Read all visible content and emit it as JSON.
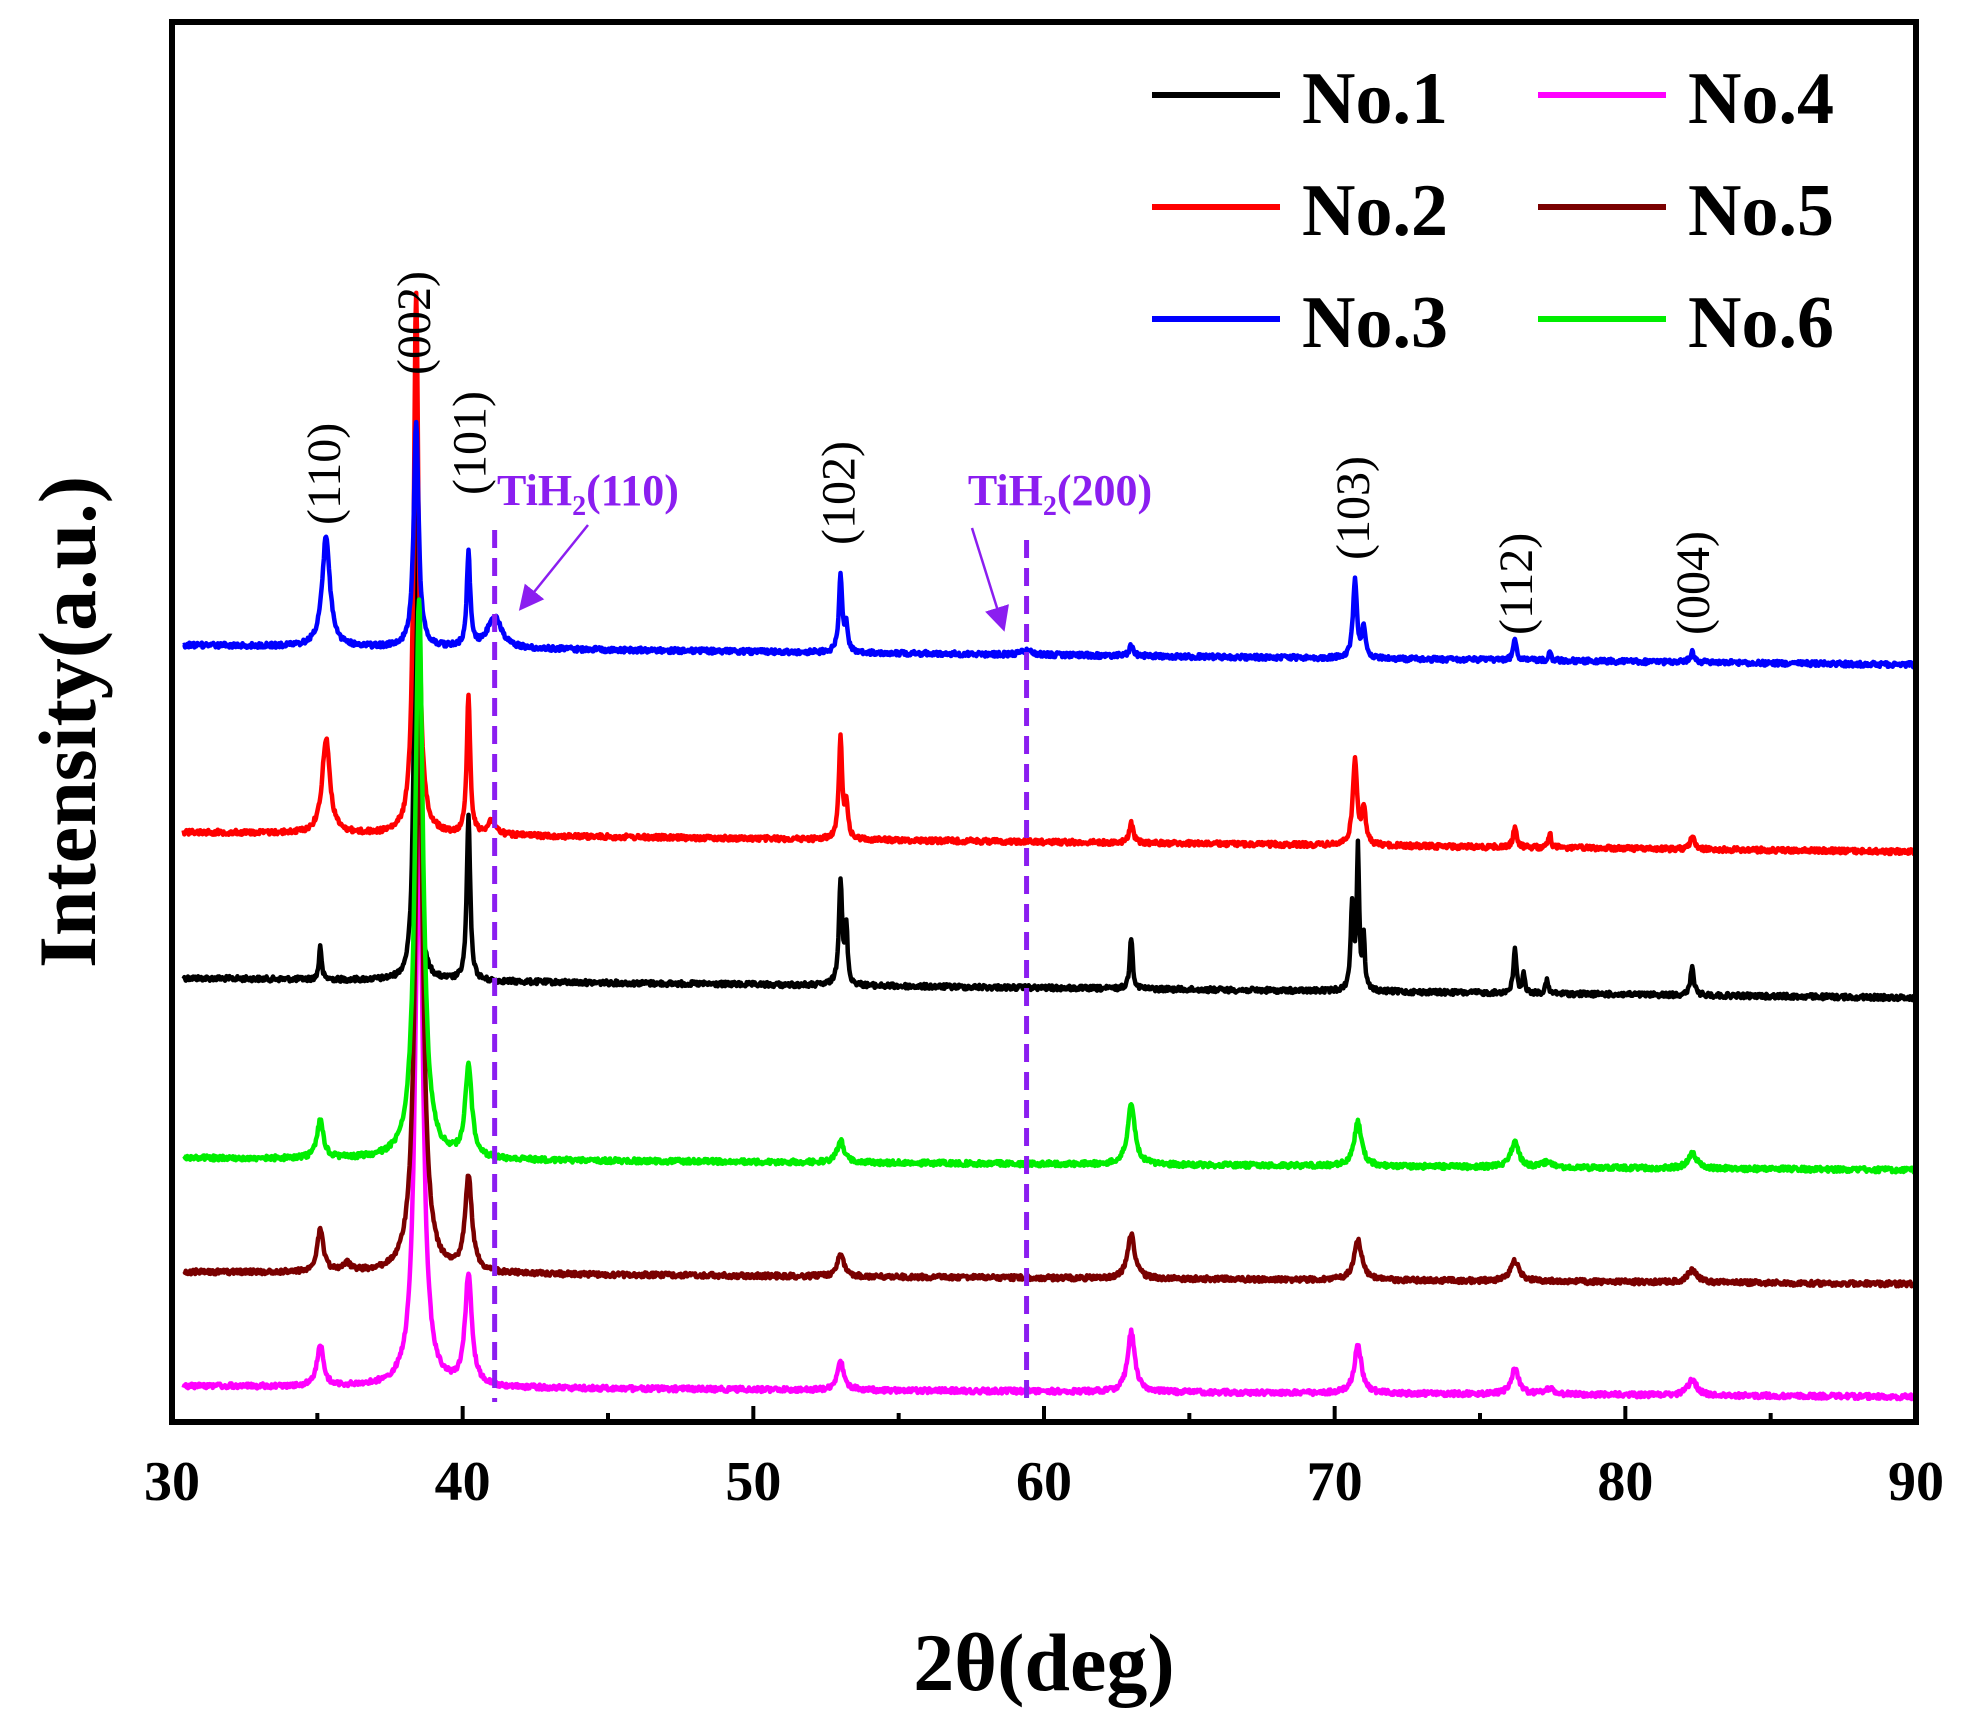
{
  "chart_data": {
    "type": "line",
    "xlabel": "2θ(deg)",
    "ylabel": "Intensity(a.u.)",
    "xlim": [
      30,
      90
    ],
    "xticks": [
      30,
      40,
      50,
      60,
      70,
      80,
      90
    ],
    "grid": false,
    "legend_position": "top-right",
    "series": [
      {
        "name": "No.1",
        "color": "#000000",
        "baseline": 978,
        "slope": 0.33,
        "peaks": [
          [
            35.1,
            0.05,
            35
          ],
          [
            38.4,
            0.08,
            520
          ],
          [
            40.2,
            0.07,
            165
          ],
          [
            53.0,
            0.07,
            105
          ],
          [
            53.2,
            0.05,
            55
          ],
          [
            63.0,
            0.06,
            52
          ],
          [
            70.6,
            0.06,
            85
          ],
          [
            70.8,
            0.05,
            140
          ],
          [
            71.0,
            0.05,
            50
          ],
          [
            76.2,
            0.06,
            45
          ],
          [
            76.5,
            0.05,
            20
          ],
          [
            77.3,
            0.05,
            14
          ],
          [
            82.3,
            0.07,
            28
          ]
        ]
      },
      {
        "name": "No.2",
        "color": "#ff0000",
        "baseline": 832,
        "slope": 0.33,
        "peaks": [
          [
            35.3,
            0.16,
            95
          ],
          [
            38.4,
            0.1,
            540
          ],
          [
            40.2,
            0.07,
            140
          ],
          [
            41.0,
            0.16,
            14
          ],
          [
            53.0,
            0.07,
            100
          ],
          [
            53.2,
            0.06,
            35
          ],
          [
            63.0,
            0.08,
            20
          ],
          [
            70.7,
            0.09,
            85
          ],
          [
            71.0,
            0.08,
            35
          ],
          [
            76.2,
            0.07,
            20
          ],
          [
            77.4,
            0.05,
            15
          ],
          [
            82.3,
            0.08,
            14
          ]
        ]
      },
      {
        "name": "No.3",
        "color": "#0000ff",
        "baseline": 645,
        "slope": 0.33,
        "peaks": [
          [
            35.3,
            0.16,
            110
          ],
          [
            38.4,
            0.1,
            225
          ],
          [
            40.2,
            0.07,
            95
          ],
          [
            41.1,
            0.28,
            32
          ],
          [
            53.0,
            0.07,
            75
          ],
          [
            53.2,
            0.06,
            25
          ],
          [
            59.4,
            0.2,
            4
          ],
          [
            63.0,
            0.08,
            10
          ],
          [
            70.7,
            0.08,
            80
          ],
          [
            71.0,
            0.07,
            30
          ],
          [
            76.2,
            0.07,
            20
          ],
          [
            77.4,
            0.05,
            8
          ],
          [
            82.3,
            0.08,
            10
          ]
        ]
      },
      {
        "name": "No.4",
        "color": "#ff00ff",
        "baseline": 1386,
        "slope": 0.18,
        "peaks": [
          [
            35.1,
            0.13,
            42
          ],
          [
            38.5,
            0.16,
            560
          ],
          [
            40.2,
            0.14,
            110
          ],
          [
            53.0,
            0.14,
            28
          ],
          [
            63.0,
            0.15,
            60
          ],
          [
            70.8,
            0.15,
            48
          ],
          [
            76.2,
            0.16,
            25
          ],
          [
            77.4,
            0.18,
            6
          ],
          [
            82.3,
            0.18,
            16
          ]
        ]
      },
      {
        "name": "No.5",
        "color": "#7a0000",
        "baseline": 1272,
        "slope": 0.2,
        "peaks": [
          [
            35.1,
            0.13,
            42
          ],
          [
            36.0,
            0.2,
            8
          ],
          [
            38.5,
            0.16,
            560
          ],
          [
            40.2,
            0.14,
            95
          ],
          [
            53.0,
            0.14,
            22
          ],
          [
            63.0,
            0.15,
            45
          ],
          [
            70.8,
            0.16,
            40
          ],
          [
            76.2,
            0.18,
            20
          ],
          [
            82.3,
            0.2,
            12
          ]
        ]
      },
      {
        "name": "No.6",
        "color": "#00ee00",
        "baseline": 1158,
        "slope": 0.2,
        "peaks": [
          [
            35.1,
            0.13,
            38
          ],
          [
            38.5,
            0.16,
            560
          ],
          [
            40.2,
            0.14,
            90
          ],
          [
            53.0,
            0.14,
            22
          ],
          [
            63.0,
            0.15,
            60
          ],
          [
            70.8,
            0.15,
            45
          ],
          [
            76.2,
            0.16,
            25
          ],
          [
            77.3,
            0.18,
            5
          ],
          [
            82.3,
            0.18,
            15
          ]
        ]
      }
    ],
    "peak_labels": [
      {
        "text": "(110)",
        "x": 35.3
      },
      {
        "text": "(002)",
        "x": 38.4
      },
      {
        "text": "(101)",
        "x": 40.3
      },
      {
        "text": "(102)",
        "x": 53.0
      },
      {
        "text": "(103)",
        "x": 70.7
      },
      {
        "text": "(112)",
        "x": 76.3
      },
      {
        "text": "(004)",
        "x": 82.4
      }
    ],
    "phase_lines": [
      {
        "label": "TiH",
        "sub": "2",
        "hkl": "(110)",
        "x": 41.1,
        "color": "#8b1ef0"
      },
      {
        "label": "TiH",
        "sub": "2",
        "hkl": "(200)",
        "x": 59.4,
        "color": "#8b1ef0"
      }
    ]
  }
}
